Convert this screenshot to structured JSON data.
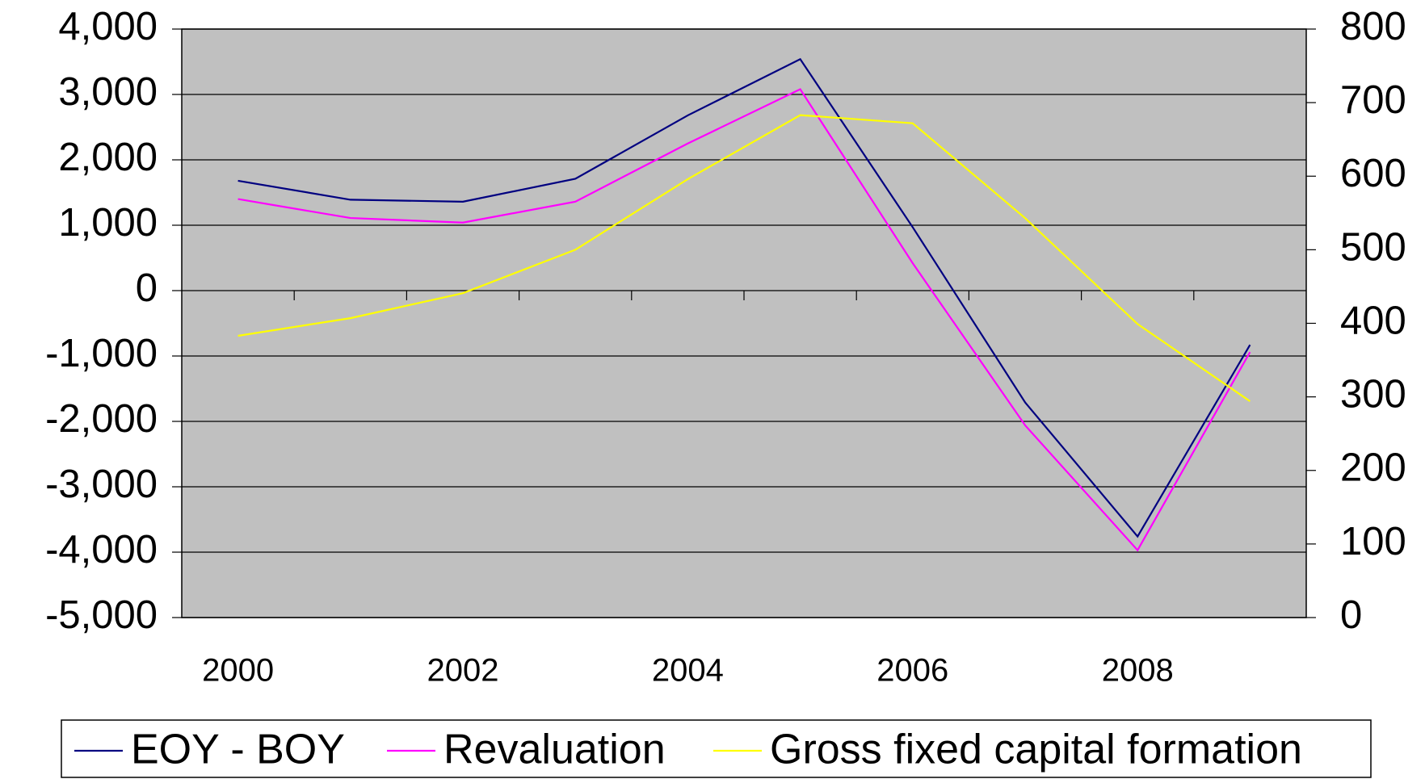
{
  "chart_data": {
    "type": "line",
    "categories": [
      "2000",
      null,
      "2002",
      null,
      "2004",
      null,
      "2006",
      null,
      "2008",
      null
    ],
    "series": [
      {
        "name": "EOY - BOY",
        "color": "#000080",
        "values": [
          1680,
          1390,
          1360,
          1710,
          2680,
          3540,
          970,
          -1710,
          -3760,
          -830
        ]
      },
      {
        "name": "Revaluation",
        "color": "#ff00ff",
        "values": [
          1400,
          1110,
          1040,
          1360,
          2250,
          3080,
          420,
          -2060,
          -3970,
          -940
        ]
      },
      {
        "name": "Gross fixed capital formation",
        "color": "#ffff00",
        "axis": "y2",
        "values": [
          383,
          407,
          441,
          500,
          596,
          683,
          672,
          543,
          399,
          294
        ]
      }
    ],
    "ylim": [
      -5000,
      4000
    ],
    "yticks": [
      {
        "value": -5000,
        "label": "-5,000"
      },
      {
        "value": -4000,
        "label": "-4,000"
      },
      {
        "value": -3000,
        "label": "-3,000"
      },
      {
        "value": -2000,
        "label": "-2,000"
      },
      {
        "value": -1000,
        "label": "-1,000"
      },
      0,
      {
        "value": 1000,
        "label": "1,000"
      },
      {
        "value": 2000,
        "label": "2,000"
      },
      {
        "value": 3000,
        "label": "3,000"
      },
      {
        "value": 4000,
        "label": "4,000"
      }
    ],
    "y2lim": [
      0,
      800
    ],
    "y2ticks": [
      0,
      100,
      200,
      300,
      400,
      500,
      600,
      700,
      800
    ],
    "grid": true,
    "background": "#c0c0c0",
    "legend": "bottom"
  }
}
